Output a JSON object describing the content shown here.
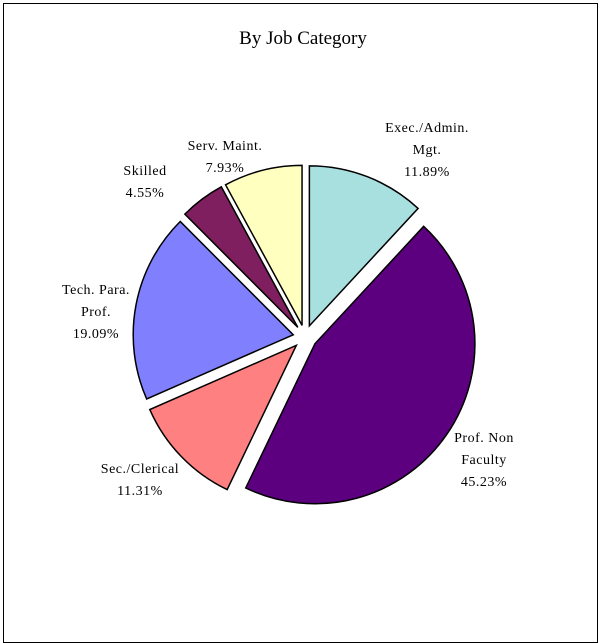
{
  "chart_data": {
    "type": "pie",
    "title": "By Job Category",
    "slices": [
      {
        "label_lines": [
          "Exec./Admin.",
          "Mgt."
        ],
        "percent_label": "11.89%",
        "value": 11.89,
        "color": "#A8E0E0"
      },
      {
        "label_lines": [
          "Prof. Non",
          "Faculty"
        ],
        "percent_label": "45.23%",
        "value": 45.23,
        "color": "#5C0080"
      },
      {
        "label_lines": [
          "Sec./Clerical"
        ],
        "percent_label": "11.31%",
        "value": 11.31,
        "color": "#FF8080"
      },
      {
        "label_lines": [
          "Tech. Para.",
          "Prof."
        ],
        "percent_label": "19.09%",
        "value": 19.09,
        "color": "#8080FF"
      },
      {
        "label_lines": [
          "Skilled"
        ],
        "percent_label": "4.55%",
        "value": 4.55,
        "color": "#7F1F5F"
      },
      {
        "label_lines": [
          "Serv. Maint."
        ],
        "percent_label": "7.93%",
        "value": 7.93,
        "color": "#FFFFC0"
      }
    ],
    "exploded": true
  }
}
